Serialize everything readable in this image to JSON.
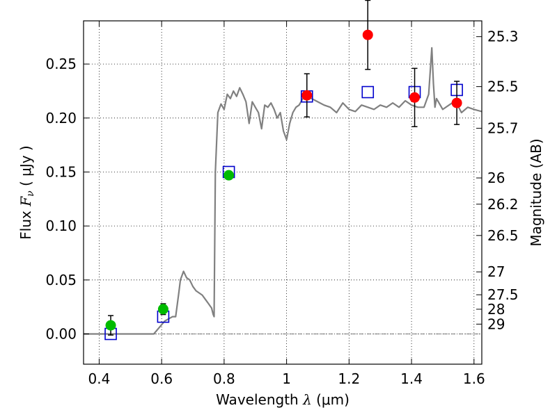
{
  "chart_data": {
    "type": "scatter",
    "title": "",
    "xlabel": {
      "prefix": "Wavelength  ",
      "symbol": "λ",
      "unit": " (μm)"
    },
    "ylabel": {
      "prefix": "Flux  ",
      "symbol": "F",
      "subscript": "ν",
      "unit": "  ( μJy )"
    },
    "y2label": "Magnitude (AB)",
    "xlim": [
      0.35,
      1.625
    ],
    "ylim": [
      -0.028,
      0.29
    ],
    "grid": true,
    "x_ticks": [
      0.4,
      0.6,
      0.8,
      1.0,
      1.2,
      1.4,
      1.6
    ],
    "x_tick_labels": [
      "0.4",
      "0.6",
      "0.8",
      "1",
      "1.2",
      "1.4",
      "1.6"
    ],
    "y_ticks": [
      0.0,
      0.05,
      0.1,
      0.15,
      0.2,
      0.25
    ],
    "y_tick_labels": [
      "0.00",
      "0.05",
      "0.10",
      "0.15",
      "0.20",
      "0.25"
    ],
    "mag_ticks": [
      {
        "label": "25.3",
        "flux": 0.2754
      },
      {
        "label": "25.5",
        "flux": 0.2291
      },
      {
        "label": "25.7",
        "flux": 0.1905
      },
      {
        "label": "26",
        "flux": 0.1445
      },
      {
        "label": "26.2",
        "flux": 0.1202
      },
      {
        "label": "26.5",
        "flux": 0.0912
      },
      {
        "label": "27",
        "flux": 0.0575
      },
      {
        "label": "27.5",
        "flux": 0.0363
      },
      {
        "label": "28",
        "flux": 0.0229
      },
      {
        "label": "29",
        "flux": 0.0091
      }
    ],
    "series": [
      {
        "kind": "line",
        "color": "#808080",
        "x": [
          0.35,
          0.575,
          0.61,
          0.635,
          0.645,
          0.655,
          0.66,
          0.67,
          0.68,
          0.69,
          0.7,
          0.71,
          0.72,
          0.73,
          0.74,
          0.75,
          0.76,
          0.765,
          0.768,
          0.772,
          0.78,
          0.79,
          0.8,
          0.81,
          0.82,
          0.83,
          0.84,
          0.85,
          0.86,
          0.87,
          0.88,
          0.89,
          0.9,
          0.91,
          0.92,
          0.93,
          0.94,
          0.95,
          0.96,
          0.97,
          0.98,
          0.99,
          1.0,
          1.01,
          1.02,
          1.03,
          1.04,
          1.06,
          1.08,
          1.1,
          1.12,
          1.14,
          1.16,
          1.18,
          1.2,
          1.22,
          1.24,
          1.26,
          1.28,
          1.3,
          1.32,
          1.34,
          1.36,
          1.38,
          1.4,
          1.42,
          1.44,
          1.455,
          1.465,
          1.47,
          1.475,
          1.48,
          1.5,
          1.52,
          1.54,
          1.56,
          1.58,
          1.6,
          1.625
        ],
        "y": [
          0.0,
          0.0,
          0.012,
          0.016,
          0.016,
          0.038,
          0.05,
          0.058,
          0.052,
          0.05,
          0.044,
          0.04,
          0.038,
          0.036,
          0.032,
          0.028,
          0.024,
          0.018,
          0.016,
          0.15,
          0.205,
          0.213,
          0.208,
          0.222,
          0.218,
          0.225,
          0.22,
          0.228,
          0.222,
          0.215,
          0.195,
          0.215,
          0.21,
          0.205,
          0.19,
          0.212,
          0.21,
          0.214,
          0.208,
          0.2,
          0.205,
          0.188,
          0.18,
          0.195,
          0.205,
          0.21,
          0.212,
          0.222,
          0.218,
          0.215,
          0.212,
          0.21,
          0.205,
          0.214,
          0.208,
          0.206,
          0.212,
          0.21,
          0.208,
          0.212,
          0.21,
          0.214,
          0.21,
          0.216,
          0.212,
          0.21,
          0.21,
          0.222,
          0.265,
          0.232,
          0.21,
          0.218,
          0.208,
          0.212,
          0.216,
          0.205,
          0.21,
          0.208,
          0.206
        ]
      },
      {
        "kind": "points",
        "marker": "square",
        "color": "#0000cc",
        "x": [
          0.437,
          0.605,
          0.815,
          1.065,
          1.26,
          1.41,
          1.545
        ],
        "y": [
          0.0,
          0.016,
          0.15,
          0.22,
          0.224,
          0.224,
          0.226
        ]
      },
      {
        "kind": "points",
        "marker": "circle",
        "color": "#00bb00",
        "x": [
          0.437,
          0.605,
          0.815
        ],
        "y": [
          0.008,
          0.023,
          0.147
        ],
        "err": [
          0.009,
          0.005,
          0.003
        ]
      },
      {
        "kind": "points",
        "marker": "circle",
        "color": "#ff0000",
        "x": [
          1.065,
          1.26,
          1.41,
          1.545
        ],
        "y": [
          0.221,
          0.277,
          0.219,
          0.214
        ],
        "err": [
          0.02,
          0.032,
          0.027,
          0.02
        ]
      }
    ]
  }
}
